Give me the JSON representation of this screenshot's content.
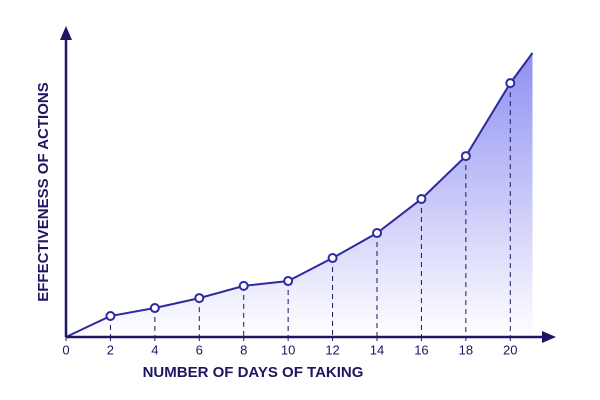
{
  "chart_data": {
    "type": "area",
    "x_label": "NUMBER OF DAYS OF TAKING",
    "y_label": "EFFECTIVENESS OF ACTIONS",
    "x": [
      0,
      2,
      4,
      6,
      8,
      10,
      12,
      14,
      16,
      18,
      20,
      21
    ],
    "values": [
      0,
      7.4,
      10.2,
      13.7,
      18,
      19.7,
      27.8,
      36.6,
      48.6,
      63.7,
      89.4,
      100
    ],
    "color": "#2f2a9e",
    "fill_top": "#8f8ff2",
    "xlim": [
      0,
      21
    ],
    "ylim": [
      0,
      100
    ],
    "xticks": [
      0,
      2,
      4,
      6,
      8,
      10,
      12,
      14,
      16,
      18,
      20
    ]
  }
}
